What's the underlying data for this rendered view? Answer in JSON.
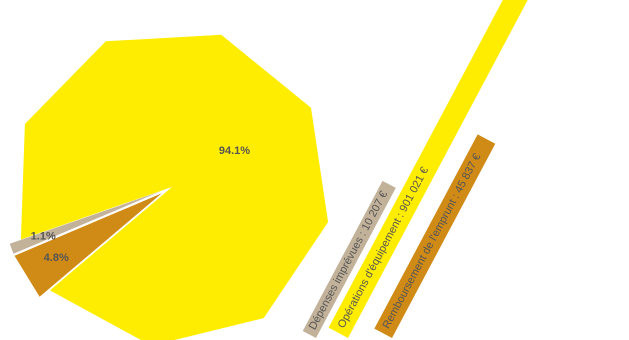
{
  "chart_data": {
    "type": "pie",
    "slices": [
      {
        "name": "Dépenses imprévues",
        "value": 10207,
        "percent_label": "1.1%",
        "legend_label": "Dépenses imprévues : 10 207 €",
        "color": "#c2b29a"
      },
      {
        "name": "Opérations d'équipement",
        "value": 901021,
        "percent_label": "94.1%",
        "legend_label": "Opérations d'équipement : 901 021 €",
        "color": "#ffed00"
      },
      {
        "name": "Remboursement de l'emprunt",
        "value": 45837,
        "percent_label": "4.8%",
        "legend_label": "Remboursement de l'emprunt : 45 837 €",
        "color": "#d08a16"
      }
    ],
    "text_color": "#555555",
    "legend_placement": "bottom-right, rotated"
  }
}
